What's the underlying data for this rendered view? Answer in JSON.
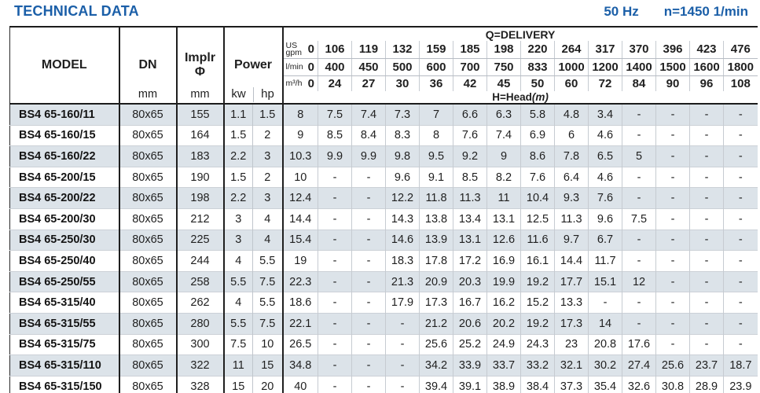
{
  "page": {
    "title": "TECHNICAL DATA",
    "frequency": "50 Hz",
    "speed": "n=1450 1/min"
  },
  "colors": {
    "accent_blue": "#1b5fa8",
    "row_stripe": "#dce3e9",
    "border_black": "#1c1c1c"
  },
  "table": {
    "headers": {
      "model": "MODEL",
      "dn": "DN",
      "dn_unit": "mm",
      "implr_line1": "Implr",
      "implr_line2": "Φ",
      "implr_unit": "mm",
      "power": "Power",
      "power_kw": "kw",
      "power_hp": "hp",
      "delivery_title": "Q=DELIVERY",
      "head_label": "H=Head",
      "head_unit": "(m)",
      "unit_gpm_top": "US",
      "unit_gpm": "gpm",
      "unit_lmin": "l/min",
      "unit_m3h": "m³/h"
    },
    "delivery_columns": {
      "gpm": [
        "0",
        "106",
        "119",
        "132",
        "159",
        "185",
        "198",
        "220",
        "264",
        "317",
        "370",
        "396",
        "423",
        "476"
      ],
      "lmin": [
        "0",
        "400",
        "450",
        "500",
        "600",
        "700",
        "750",
        "833",
        "1000",
        "1200",
        "1400",
        "1500",
        "1600",
        "1800"
      ],
      "m3h": [
        "0",
        "24",
        "27",
        "30",
        "36",
        "42",
        "45",
        "50",
        "60",
        "72",
        "84",
        "90",
        "96",
        "108"
      ]
    },
    "rows": [
      {
        "model": "BS4 65-160/11",
        "dn": "80x65",
        "implr": "155",
        "kw": "1.1",
        "hp": "1.5",
        "head": [
          "8",
          "7.5",
          "7.4",
          "7.3",
          "7",
          "6.6",
          "6.3",
          "5.8",
          "4.8",
          "3.4",
          "-",
          "-",
          "-",
          "-"
        ]
      },
      {
        "model": "BS4 65-160/15",
        "dn": "80x65",
        "implr": "164",
        "kw": "1.5",
        "hp": "2",
        "head": [
          "9",
          "8.5",
          "8.4",
          "8.3",
          "8",
          "7.6",
          "7.4",
          "6.9",
          "6",
          "4.6",
          "-",
          "-",
          "-",
          "-"
        ]
      },
      {
        "model": "BS4 65-160/22",
        "dn": "80x65",
        "implr": "183",
        "kw": "2.2",
        "hp": "3",
        "head": [
          "10.3",
          "9.9",
          "9.9",
          "9.8",
          "9.5",
          "9.2",
          "9",
          "8.6",
          "7.8",
          "6.5",
          "5",
          "-",
          "-",
          "-"
        ]
      },
      {
        "model": "BS4 65-200/15",
        "dn": "80x65",
        "implr": "190",
        "kw": "1.5",
        "hp": "2",
        "head": [
          "10",
          "-",
          "-",
          "9.6",
          "9.1",
          "8.5",
          "8.2",
          "7.6",
          "6.4",
          "4.6",
          "-",
          "-",
          "-",
          "-"
        ]
      },
      {
        "model": "BS4 65-200/22",
        "dn": "80x65",
        "implr": "198",
        "kw": "2.2",
        "hp": "3",
        "head": [
          "12.4",
          "-",
          "-",
          "12.2",
          "11.8",
          "11.3",
          "11",
          "10.4",
          "9.3",
          "7.6",
          "-",
          "-",
          "-",
          "-"
        ]
      },
      {
        "model": "BS4 65-200/30",
        "dn": "80x65",
        "implr": "212",
        "kw": "3",
        "hp": "4",
        "head": [
          "14.4",
          "-",
          "-",
          "14.3",
          "13.8",
          "13.4",
          "13.1",
          "12.5",
          "11.3",
          "9.6",
          "7.5",
          "-",
          "-",
          "-"
        ]
      },
      {
        "model": "BS4 65-250/30",
        "dn": "80x65",
        "implr": "225",
        "kw": "3",
        "hp": "4",
        "head": [
          "15.4",
          "-",
          "-",
          "14.6",
          "13.9",
          "13.1",
          "12.6",
          "11.6",
          "9.7",
          "6.7",
          "-",
          "-",
          "-",
          "-"
        ]
      },
      {
        "model": "BS4 65-250/40",
        "dn": "80x65",
        "implr": "244",
        "kw": "4",
        "hp": "5.5",
        "head": [
          "19",
          "-",
          "-",
          "18.3",
          "17.8",
          "17.2",
          "16.9",
          "16.1",
          "14.4",
          "11.7",
          "-",
          "-",
          "-",
          "-"
        ]
      },
      {
        "model": "BS4 65-250/55",
        "dn": "80x65",
        "implr": "258",
        "kw": "5.5",
        "hp": "7.5",
        "head": [
          "22.3",
          "-",
          "-",
          "21.3",
          "20.9",
          "20.3",
          "19.9",
          "19.2",
          "17.7",
          "15.1",
          "12",
          "-",
          "-",
          "-"
        ]
      },
      {
        "model": "BS4 65-315/40",
        "dn": "80x65",
        "implr": "262",
        "kw": "4",
        "hp": "5.5",
        "head": [
          "18.6",
          "-",
          "-",
          "17.9",
          "17.3",
          "16.7",
          "16.2",
          "15.2",
          "13.3",
          "-",
          "-",
          "-",
          "-",
          "-"
        ]
      },
      {
        "model": "BS4 65-315/55",
        "dn": "80x65",
        "implr": "280",
        "kw": "5.5",
        "hp": "7.5",
        "head": [
          "22.1",
          "-",
          "-",
          "-",
          "21.2",
          "20.6",
          "20.2",
          "19.2",
          "17.3",
          "14",
          "-",
          "-",
          "-",
          "-"
        ]
      },
      {
        "model": "BS4 65-315/75",
        "dn": "80x65",
        "implr": "300",
        "kw": "7.5",
        "hp": "10",
        "head": [
          "26.5",
          "-",
          "-",
          "-",
          "25.6",
          "25.2",
          "24.9",
          "24.3",
          "23",
          "20.8",
          "17.6",
          "-",
          "-",
          "-"
        ]
      },
      {
        "model": "BS4 65-315/110",
        "dn": "80x65",
        "implr": "322",
        "kw": "11",
        "hp": "15",
        "head": [
          "34.8",
          "-",
          "-",
          "-",
          "34.2",
          "33.9",
          "33.7",
          "33.2",
          "32.1",
          "30.2",
          "27.4",
          "25.6",
          "23.7",
          "18.7"
        ]
      },
      {
        "model": "BS4 65-315/150",
        "dn": "80x65",
        "implr": "328",
        "kw": "15",
        "hp": "20",
        "head": [
          "40",
          "-",
          "-",
          "-",
          "39.4",
          "39.1",
          "38.9",
          "38.4",
          "37.3",
          "35.4",
          "32.6",
          "30.8",
          "28.9",
          "23.9"
        ]
      }
    ]
  }
}
